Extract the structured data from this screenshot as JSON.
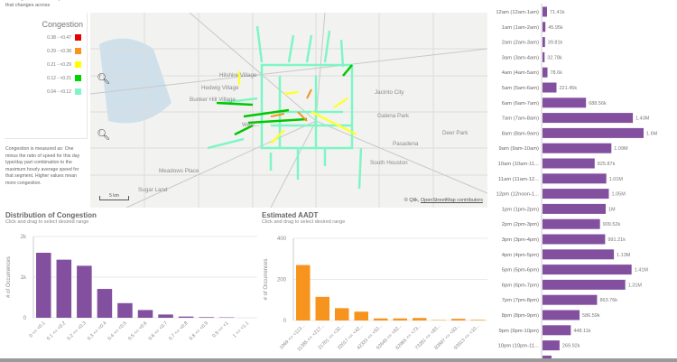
{
  "intro_text": "across your ... and to explore how that changes across",
  "legend": {
    "title": "Congestion",
    "items": [
      {
        "label": "0.38 - <0.47",
        "color": "#e60000"
      },
      {
        "label": "0.29 - <0.38",
        "color": "#f7941d"
      },
      {
        "label": "0.21 - <0.29",
        "color": "#ffff00"
      },
      {
        "label": "0.12 - <0.21",
        "color": "#00d400"
      },
      {
        "label": "0.04 - <0.12",
        "color": "#7ff5c5"
      }
    ]
  },
  "note": "Congestion is measured as: One minus the ratio of speed for this day type/day part combination to the maximum hourly average speed for that segment. Higher values mean more congestion.",
  "map": {
    "places": [
      "Hilshire Village",
      "Hedwig Village",
      "Bunker Hill Village",
      "West...",
      "Jacinto City",
      "Galena Park",
      "Pasadena",
      "Deer Park",
      "South Houston",
      "Meadows Place",
      "Sugar Land"
    ],
    "scale": "5 km",
    "attribution_prefix": "© Qlik,",
    "attribution_link": "OpenStreetMap contributors",
    "zoom_in_icon": "zoom-in-icon",
    "zoom_out_icon": "zoom-out-icon"
  },
  "chart_data": [
    {
      "type": "bar",
      "title": "Distribution of Congestion",
      "subtitle": "Click and drag to select desired range",
      "ylabel": "# of Occurrences",
      "xlabel": "",
      "ylim": [
        0,
        2000
      ],
      "yticks": [
        "0",
        "1k",
        "2k"
      ],
      "grid": true,
      "color": "#8350a0",
      "categories": [
        "0 <= <0.1",
        "0.1 <= <0.2",
        "0.2 <= <0.3",
        "0.3 <= <0.4",
        "0.4 <= <0.5",
        "0.5 <= <0.6",
        "0.6 <= <0.7",
        "0.7 <= <0.8",
        "0.8 <= <0.9",
        "0.9 <= <1",
        "1 <= <1.1"
      ],
      "values": [
        1600,
        1430,
        1280,
        710,
        360,
        190,
        80,
        30,
        15,
        10,
        0
      ]
    },
    {
      "type": "bar",
      "title": "Estimated AADT",
      "subtitle": "Click and drag to select desired range",
      "ylabel": "# of Occurrences",
      "xlabel": "",
      "ylim": [
        0,
        400
      ],
      "yticks": [
        "0",
        "200",
        "400"
      ],
      "grid": true,
      "color": "#f7941d",
      "categories": [
        "1069 <= <113...",
        "11385 <= <217...",
        "21701 <= <32...",
        "32017 <= <42...",
        "42333 <= <52...",
        "52649 <= <62...",
        "62965 <= <73...",
        "73281 <= <83...",
        "83597 <= <93...",
        "93913 <= <10..."
      ],
      "values": [
        270,
        115,
        60,
        43,
        10,
        10,
        12,
        2,
        8,
        3
      ]
    },
    {
      "type": "bar",
      "orientation": "horizontal",
      "color": "#8350a0",
      "categories": [
        "12am (12am-1am)",
        "1am (1am-2am)",
        "2am (2am-3am)",
        "3am (3am-4am)",
        "4am (4am-5am)",
        "5am (5am-6am)",
        "6am (6am-7am)",
        "7am (7am-8am)",
        "8am (8am-9am)",
        "9am (9am-10am)",
        "10am (10am-11...",
        "11am (11am-12...",
        "12pm (12noon-1...",
        "1pm (1pm-2pm)",
        "2pm (2pm-3pm)",
        "3pm (3pm-4pm)",
        "4pm (4pm-5pm)",
        "5pm (5pm-6pm)",
        "6pm (6pm-7pm)",
        "7pm (7pm-8pm)",
        "8pm (8pm-9pm)",
        "9pm (9pm-10pm)",
        "10pm (10pm-11..."
      ],
      "values": [
        71410,
        45950,
        39810,
        32780,
        78600,
        221450,
        688560,
        1430000,
        1600000,
        1090000,
        825870,
        1010000,
        1050000,
        1000000,
        909520,
        991210,
        1130000,
        1410000,
        1310000,
        863760,
        586590,
        448110,
        269920
      ],
      "value_labels": [
        "71.41k",
        "45.95k",
        "39.81k",
        "32.78k",
        "78.6k",
        "221.45k",
        "688.56k",
        "1.43M",
        "1.6M",
        "1.09M",
        "825.87k",
        "1.01M",
        "1.05M",
        "1M",
        "909.52k",
        "991.21k",
        "1.13M",
        "1.41M",
        "1.31M",
        "863.76k",
        "586.59k",
        "448.11k",
        "269.92k"
      ]
    }
  ]
}
